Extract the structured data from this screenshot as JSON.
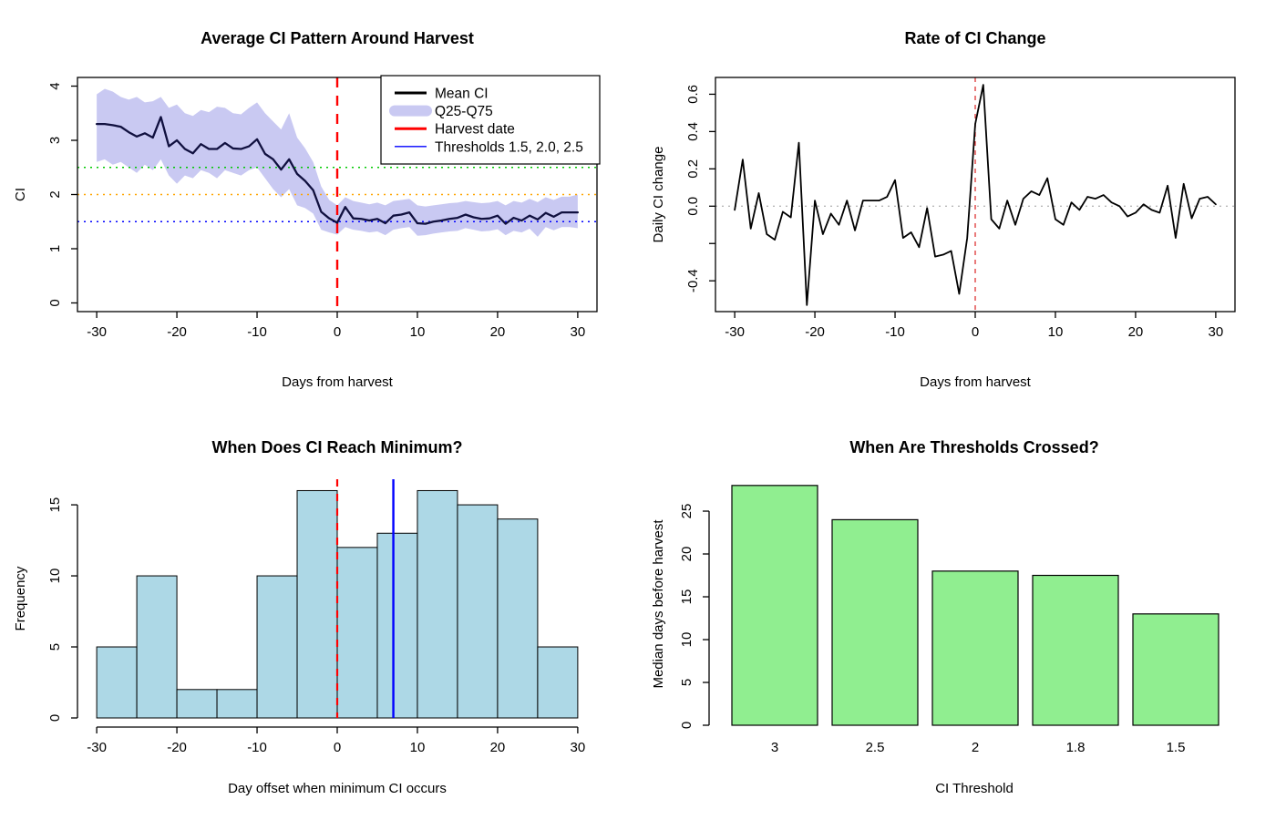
{
  "figure": {
    "background": "#ffffff",
    "description_titles": [
      "Average CI Pattern Around Harvest",
      "Rate of CI Change",
      "When Does CI Reach Minimum?",
      "When Are Thresholds Crossed?"
    ]
  },
  "chart_data": [
    {
      "id": "ci-pattern",
      "type": "line",
      "title": "Average CI Pattern Around Harvest",
      "xlabel": "Days from harvest",
      "ylabel": "CI",
      "xlim": [
        -32.4,
        32.4
      ],
      "ylim": [
        -0.16,
        4.16
      ],
      "xticks": [
        -30,
        -20,
        -10,
        0,
        10,
        20,
        30
      ],
      "yticks": [
        0,
        1,
        2,
        3,
        4
      ],
      "x": [
        -30,
        -29,
        -28,
        -27,
        -26,
        -25,
        -24,
        -23,
        -22,
        -21,
        -20,
        -19,
        -18,
        -17,
        -16,
        -15,
        -14,
        -13,
        -12,
        -11,
        -10,
        -9,
        -8,
        -7,
        -6,
        -5,
        -4,
        -3,
        -2,
        -1,
        0,
        1,
        2,
        3,
        4,
        5,
        6,
        7,
        8,
        9,
        10,
        11,
        12,
        13,
        14,
        15,
        16,
        17,
        18,
        19,
        20,
        21,
        22,
        23,
        24,
        25,
        26,
        27,
        28,
        29,
        30
      ],
      "series": [
        {
          "name": "Mean CI",
          "color": "#10103f",
          "width": 2.3,
          "values": [
            3.3,
            3.3,
            3.28,
            3.25,
            3.15,
            3.07,
            3.13,
            3.05,
            3.43,
            2.89,
            3.0,
            2.84,
            2.76,
            2.93,
            2.84,
            2.84,
            2.95,
            2.85,
            2.84,
            2.89,
            3.02,
            2.75,
            2.65,
            2.46,
            2.65,
            2.38,
            2.25,
            2.08,
            1.68,
            1.56,
            1.48,
            1.77,
            1.56,
            1.55,
            1.52,
            1.55,
            1.47,
            1.61,
            1.63,
            1.67,
            1.47,
            1.46,
            1.5,
            1.52,
            1.55,
            1.57,
            1.63,
            1.58,
            1.55,
            1.56,
            1.61,
            1.46,
            1.57,
            1.52,
            1.61,
            1.54,
            1.66,
            1.59,
            1.67,
            1.67,
            1.67
          ]
        }
      ],
      "band": {
        "name": "Q25-Q75",
        "color": "#c9c9f2",
        "lower": [
          2.6,
          2.65,
          2.55,
          2.6,
          2.5,
          2.4,
          2.55,
          2.45,
          2.65,
          2.35,
          2.2,
          2.35,
          2.3,
          2.45,
          2.4,
          2.3,
          2.45,
          2.4,
          2.35,
          2.45,
          2.5,
          2.3,
          2.1,
          1.95,
          2.1,
          1.8,
          1.75,
          1.65,
          1.35,
          1.3,
          1.26,
          1.4,
          1.35,
          1.33,
          1.3,
          1.32,
          1.25,
          1.35,
          1.38,
          1.4,
          1.24,
          1.25,
          1.28,
          1.3,
          1.32,
          1.33,
          1.38,
          1.35,
          1.32,
          1.33,
          1.36,
          1.25,
          1.33,
          1.3,
          1.37,
          1.22,
          1.4,
          1.34,
          1.4,
          1.4,
          1.38
        ],
        "upper": [
          3.85,
          3.95,
          3.9,
          3.8,
          3.75,
          3.8,
          3.7,
          3.72,
          3.8,
          3.6,
          3.66,
          3.5,
          3.45,
          3.56,
          3.52,
          3.62,
          3.6,
          3.5,
          3.48,
          3.6,
          3.7,
          3.5,
          3.35,
          3.2,
          3.5,
          3.05,
          2.85,
          2.6,
          2.15,
          1.9,
          1.8,
          1.95,
          1.88,
          1.85,
          1.82,
          1.85,
          1.8,
          1.88,
          1.9,
          1.92,
          1.8,
          1.78,
          1.8,
          1.82,
          1.84,
          1.85,
          1.88,
          1.86,
          1.84,
          1.85,
          1.88,
          1.8,
          1.88,
          1.85,
          1.92,
          1.86,
          1.95,
          1.9,
          1.96,
          1.96,
          2.0
        ]
      },
      "thresholds": [
        {
          "value": 2.5,
          "color": "#00c800"
        },
        {
          "value": 2.0,
          "color": "#ffa500"
        },
        {
          "value": 1.5,
          "color": "#0000ff"
        }
      ],
      "harvest_line": {
        "x": 0,
        "color": "#ff0000",
        "width": 2.4,
        "dash": "11 9"
      },
      "legend": {
        "items": [
          {
            "label": "Mean CI",
            "swatch": "line",
            "color": "#000000"
          },
          {
            "label": "Q25-Q75",
            "swatch": "band",
            "color": "#c9c9f2"
          },
          {
            "label": "Harvest date",
            "swatch": "line",
            "color": "#ff0000"
          },
          {
            "label": "Thresholds 1.5, 2.0, 2.5",
            "swatch": "thinline",
            "color": "#0000ff"
          }
        ]
      }
    },
    {
      "id": "rate-of-change",
      "type": "line",
      "title": "Rate of CI Change",
      "xlabel": "Days from harvest",
      "ylabel": "Daily CI change",
      "xlim": [
        -32.4,
        32.4
      ],
      "ylim": [
        -0.565,
        0.69
      ],
      "xticks": [
        -30,
        -20,
        -10,
        0,
        10,
        20,
        30
      ],
      "yticks": [
        -0.4,
        -0.2,
        0.0,
        0.2,
        0.4,
        0.6
      ],
      "ytick_labels": [
        "-0.4",
        "",
        "0.0",
        "0.2",
        "0.4",
        "0.6"
      ],
      "x": [
        -30,
        -29,
        -28,
        -27,
        -26,
        -25,
        -24,
        -23,
        -22,
        -21,
        -20,
        -19,
        -18,
        -17,
        -16,
        -15,
        -14,
        -13,
        -12,
        -11,
        -10,
        -9,
        -8,
        -7,
        -6,
        -5,
        -4,
        -3,
        -2,
        -1,
        0,
        1,
        2,
        3,
        4,
        5,
        6,
        7,
        8,
        9,
        10,
        11,
        12,
        13,
        14,
        15,
        16,
        17,
        18,
        19,
        20,
        21,
        22,
        23,
        24,
        25,
        26,
        27,
        28,
        29,
        30
      ],
      "series": [
        {
          "name": "Daily CI change",
          "color": "#000000",
          "width": 1.8,
          "values": [
            -0.02,
            0.25,
            -0.12,
            0.07,
            -0.15,
            -0.18,
            -0.03,
            -0.06,
            0.34,
            -0.53,
            0.03,
            -0.15,
            -0.04,
            -0.1,
            0.03,
            -0.13,
            0.03,
            0.03,
            0.03,
            0.05,
            0.14,
            -0.17,
            -0.14,
            -0.22,
            -0.01,
            -0.27,
            -0.26,
            -0.24,
            -0.47,
            -0.17,
            0.44,
            0.65,
            -0.07,
            -0.12,
            0.03,
            -0.1,
            0.04,
            0.08,
            0.06,
            0.15,
            -0.07,
            -0.1,
            0.02,
            -0.02,
            0.05,
            0.04,
            0.06,
            0.02,
            0.0,
            -0.055,
            -0.035,
            0.01,
            -0.02,
            -0.035,
            0.11,
            -0.17,
            0.12,
            -0.065,
            0.04,
            0.05,
            0.01
          ]
        }
      ],
      "zero_line": {
        "y": 0,
        "color": "#b8b8b8",
        "width": 1.3,
        "dash": "2 5"
      },
      "harvest_line": {
        "x": 0,
        "color": "#dd3333",
        "width": 1.3,
        "dash": "5 5"
      }
    },
    {
      "id": "min-ci-hist",
      "type": "histogram",
      "title": "When Does CI Reach Minimum?",
      "xlabel": "Day offset when minimum CI occurs",
      "ylabel": "Frequency",
      "xlim": [
        -32.4,
        32.4
      ],
      "ylim": [
        0,
        16.8
      ],
      "xticks": [
        -30,
        -20,
        -10,
        0,
        10,
        20,
        30
      ],
      "yticks": [
        0,
        5,
        10,
        15
      ],
      "bin_start": -30,
      "bin_width": 5,
      "counts": [
        5,
        10,
        2,
        2,
        10,
        16,
        12,
        13,
        16,
        15,
        14,
        5
      ],
      "fill": "#add8e6",
      "harvest_line": {
        "x": 0,
        "color": "#ff0000",
        "width": 2.2,
        "dash": "8 8"
      },
      "median_line": {
        "x": 7,
        "color": "#0000ff",
        "width": 2.4
      }
    },
    {
      "id": "threshold-crossing",
      "type": "bar",
      "title": "When Are Thresholds Crossed?",
      "xlabel": "CI Threshold",
      "ylabel": "Median days before harvest",
      "categories": [
        "3",
        "2.5",
        "2",
        "1.8",
        "1.5"
      ],
      "values": [
        28,
        24,
        18,
        17.5,
        13
      ],
      "fill": "#90ee90",
      "yticks": [
        0,
        5,
        10,
        15,
        20,
        25
      ],
      "ylim": [
        0,
        28.3
      ]
    }
  ]
}
